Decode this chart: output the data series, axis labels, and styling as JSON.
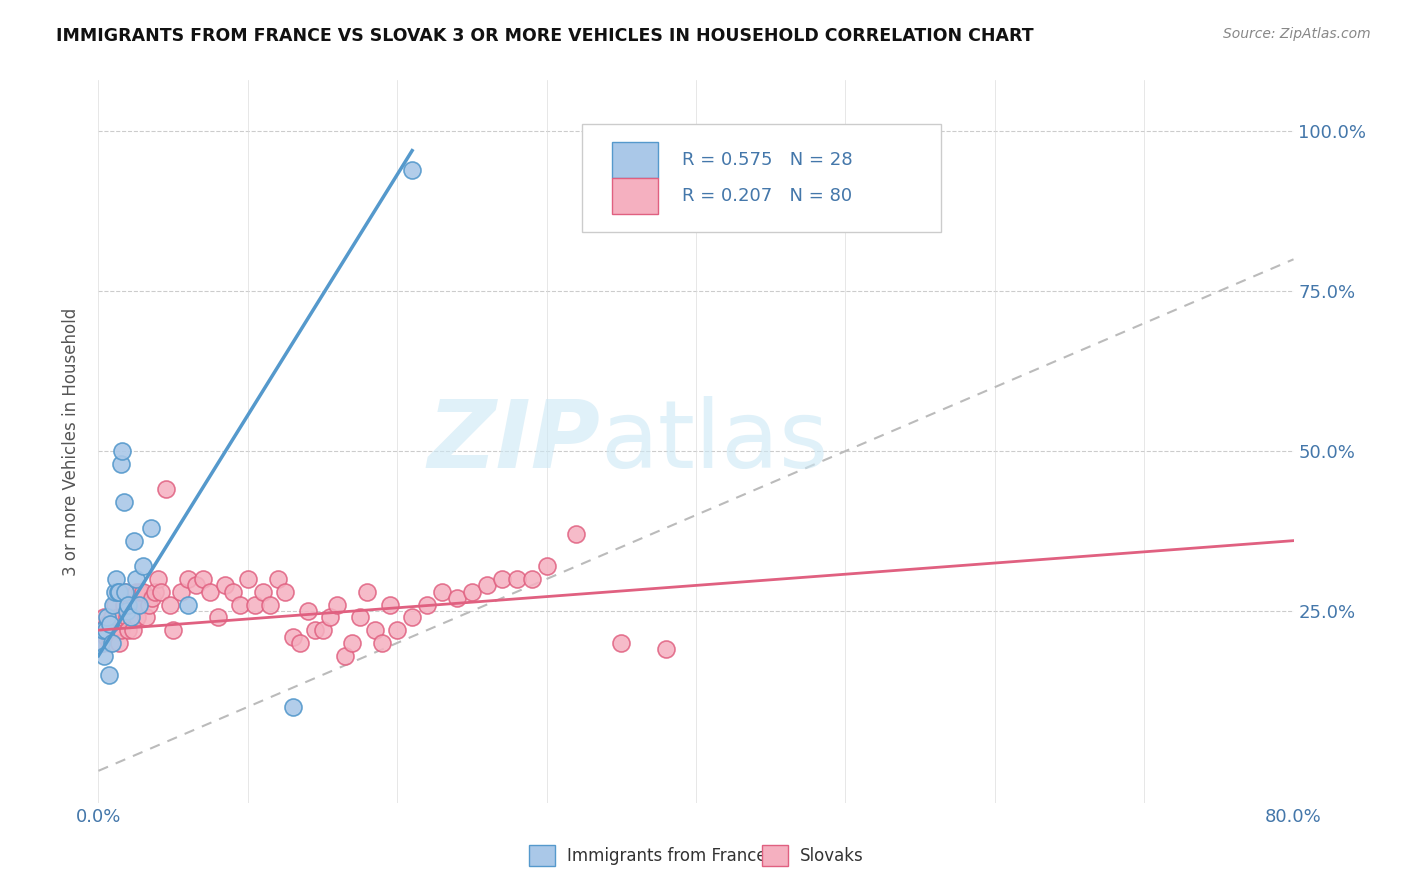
{
  "title": "IMMIGRANTS FROM FRANCE VS SLOVAK 3 OR MORE VEHICLES IN HOUSEHOLD CORRELATION CHART",
  "source": "Source: ZipAtlas.com",
  "ylabel": "3 or more Vehicles in Household",
  "ytick_labels": [
    "",
    "25.0%",
    "50.0%",
    "75.0%",
    "100.0%"
  ],
  "ytick_values": [
    0.0,
    0.25,
    0.5,
    0.75,
    1.0
  ],
  "xlim": [
    0.0,
    0.8
  ],
  "ylim": [
    -0.05,
    1.08
  ],
  "france_R": 0.575,
  "france_N": 28,
  "slovak_R": 0.207,
  "slovak_N": 80,
  "france_color": "#aac8e8",
  "france_edge_color": "#5599cc",
  "slovak_color": "#f5b0c0",
  "slovak_edge_color": "#e06080",
  "diagonal_color": "#bbbbbb",
  "watermark_zip": "ZIP",
  "watermark_atlas": "atlas",
  "france_x": [
    0.002,
    0.003,
    0.004,
    0.005,
    0.006,
    0.007,
    0.008,
    0.009,
    0.01,
    0.011,
    0.012,
    0.013,
    0.014,
    0.015,
    0.016,
    0.017,
    0.018,
    0.019,
    0.02,
    0.022,
    0.024,
    0.025,
    0.027,
    0.03,
    0.035,
    0.06,
    0.13,
    0.21
  ],
  "france_y": [
    0.2,
    0.22,
    0.18,
    0.22,
    0.24,
    0.15,
    0.23,
    0.2,
    0.26,
    0.28,
    0.3,
    0.28,
    0.28,
    0.48,
    0.5,
    0.42,
    0.28,
    0.25,
    0.26,
    0.24,
    0.36,
    0.3,
    0.26,
    0.32,
    0.38,
    0.26,
    0.1,
    0.94
  ],
  "slovak_x": [
    0.002,
    0.003,
    0.004,
    0.005,
    0.006,
    0.007,
    0.008,
    0.009,
    0.01,
    0.011,
    0.012,
    0.013,
    0.014,
    0.015,
    0.016,
    0.017,
    0.018,
    0.019,
    0.02,
    0.021,
    0.022,
    0.023,
    0.024,
    0.025,
    0.026,
    0.027,
    0.028,
    0.03,
    0.032,
    0.034,
    0.036,
    0.038,
    0.04,
    0.042,
    0.045,
    0.048,
    0.05,
    0.055,
    0.06,
    0.065,
    0.07,
    0.075,
    0.08,
    0.085,
    0.09,
    0.095,
    0.1,
    0.105,
    0.11,
    0.115,
    0.12,
    0.125,
    0.13,
    0.135,
    0.14,
    0.145,
    0.15,
    0.155,
    0.16,
    0.165,
    0.17,
    0.175,
    0.18,
    0.185,
    0.19,
    0.195,
    0.2,
    0.21,
    0.22,
    0.23,
    0.24,
    0.25,
    0.26,
    0.27,
    0.28,
    0.29,
    0.3,
    0.32,
    0.35,
    0.38
  ],
  "slovak_y": [
    0.22,
    0.2,
    0.24,
    0.21,
    0.23,
    0.22,
    0.2,
    0.24,
    0.22,
    0.26,
    0.22,
    0.24,
    0.2,
    0.22,
    0.24,
    0.26,
    0.28,
    0.24,
    0.22,
    0.25,
    0.26,
    0.22,
    0.26,
    0.28,
    0.24,
    0.26,
    0.28,
    0.28,
    0.24,
    0.26,
    0.27,
    0.28,
    0.3,
    0.28,
    0.44,
    0.26,
    0.22,
    0.28,
    0.3,
    0.29,
    0.3,
    0.28,
    0.24,
    0.29,
    0.28,
    0.26,
    0.3,
    0.26,
    0.28,
    0.26,
    0.3,
    0.28,
    0.21,
    0.2,
    0.25,
    0.22,
    0.22,
    0.24,
    0.26,
    0.18,
    0.2,
    0.24,
    0.28,
    0.22,
    0.2,
    0.26,
    0.22,
    0.24,
    0.26,
    0.28,
    0.27,
    0.28,
    0.29,
    0.3,
    0.3,
    0.3,
    0.32,
    0.37,
    0.2,
    0.19
  ],
  "france_regline_x": [
    0.0,
    0.21
  ],
  "france_regline_y": [
    0.18,
    0.97
  ],
  "slovak_regline_x": [
    0.0,
    0.8
  ],
  "slovak_regline_y": [
    0.22,
    0.36
  ]
}
